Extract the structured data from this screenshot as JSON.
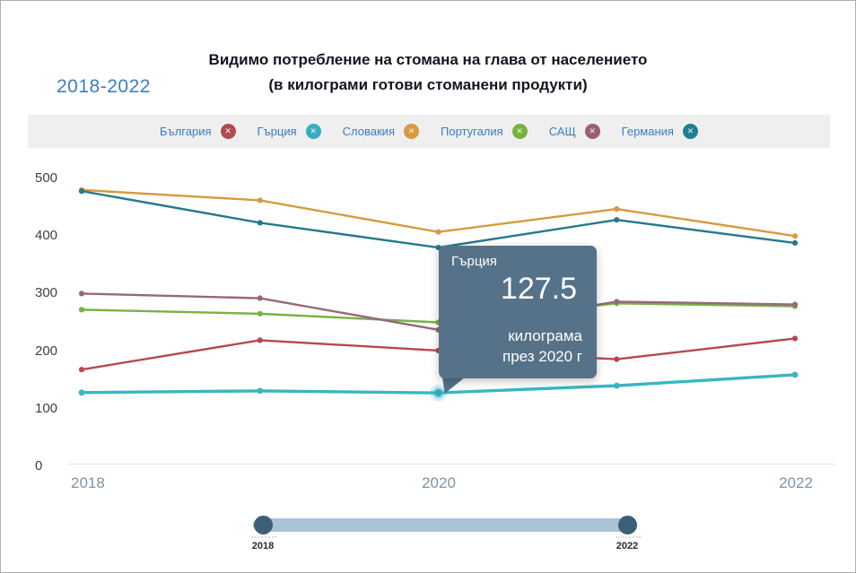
{
  "header": {
    "period": "2018-2022",
    "title_line1": "Видимо потребление на стомана на глава от населението",
    "title_line2": "(в килограми готови стоманени продукти)"
  },
  "legend": {
    "badge_glyph": "✕",
    "label_color": "#3a7cc0",
    "items": [
      {
        "label": "България",
        "color": "#b34a4e"
      },
      {
        "label": "Гърция",
        "color": "#35aec0"
      },
      {
        "label": "Словакия",
        "color": "#d79a3e"
      },
      {
        "label": "Португалия",
        "color": "#78b23e"
      },
      {
        "label": "САЩ",
        "color": "#9d5e70"
      },
      {
        "label": "Германия",
        "color": "#1f7f92"
      }
    ]
  },
  "tooltip": {
    "series": "Гърция",
    "value": "127.5",
    "unit": "килограма",
    "when": "през 2020 г",
    "bg": "#557288"
  },
  "slider": {
    "start_label": "2018",
    "end_label": "2022",
    "track_color": "#a9c3d7",
    "handle_color": "#3b6077"
  },
  "chart_data": {
    "type": "line",
    "title": "Видимо потребление на стомана на глава от населението (в килограми готови стоманени продукти)",
    "subtitle_period": "2018-2022",
    "unit": "килограми готови стоманени продукти на глава",
    "x": [
      "2018",
      "2019",
      "2020",
      "2021",
      "2022"
    ],
    "x_axis_labels": [
      "2018",
      "2020",
      "2022"
    ],
    "ylim": [
      0,
      500
    ],
    "yticks": [
      0,
      100,
      200,
      300,
      400,
      500
    ],
    "grid": false,
    "legend_position": "top",
    "series": [
      {
        "name": "Словакия",
        "color": "#d79a3e",
        "values": [
          480,
          462,
          407,
          447,
          400
        ]
      },
      {
        "name": "Германия",
        "color": "#26798c",
        "values": [
          478,
          423,
          380,
          428,
          388
        ]
      },
      {
        "name": "Португалия",
        "color": "#7ab142",
        "values": [
          272,
          265,
          250,
          283,
          278
        ]
      },
      {
        "name": "САЩ",
        "color": "#96687a",
        "values": [
          300,
          292,
          237,
          286,
          281
        ]
      },
      {
        "name": "България",
        "color": "#b6484e",
        "values": [
          168,
          219,
          201,
          186,
          222
        ]
      },
      {
        "name": "Гърция",
        "color": "#3ab5c4",
        "values": [
          128,
          131,
          127.5,
          140,
          159
        ],
        "emphasis": true,
        "highlight_index": 2,
        "highlight_value": 127.5
      }
    ]
  }
}
